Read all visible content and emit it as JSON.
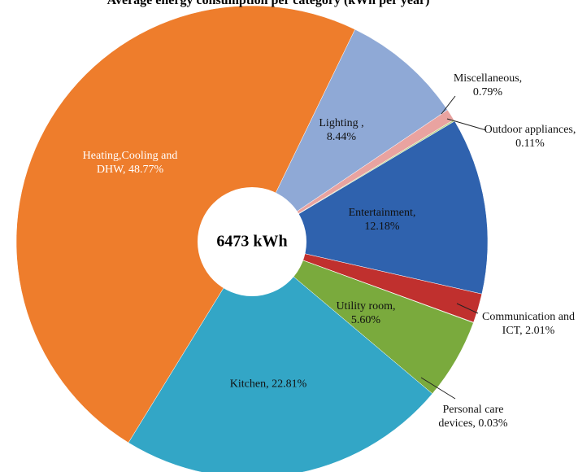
{
  "chart_data": {
    "type": "donut",
    "title": "Average energy consumption per category (kWh per year)",
    "center_label": "6473 kWh",
    "values": [
      8.44,
      0.79,
      0.11,
      12.18,
      2.01,
      0.03,
      5.6,
      22.81,
      48.77
    ],
    "value_labels": [
      "Lighting , 8.44%",
      "Miscellaneous, 0.79%",
      "Outdoor appliances, 0.11%",
      "Entertainment, 12.18%",
      "Communication and ICT, 2.01%",
      "Personal care devices, 0.03%",
      "Utility room, 5.60%",
      "Kitchen, 22.81%",
      "Heating,Cooling and DHW, 48.77%"
    ],
    "colors": [
      "#8fa9d6",
      "#e9a3a0",
      "#b7d38d",
      "#2f62ae",
      "#c0302e",
      "#5f7a2c",
      "#7aaa3d",
      "#33a6c6",
      "#ee7d2c"
    ]
  }
}
